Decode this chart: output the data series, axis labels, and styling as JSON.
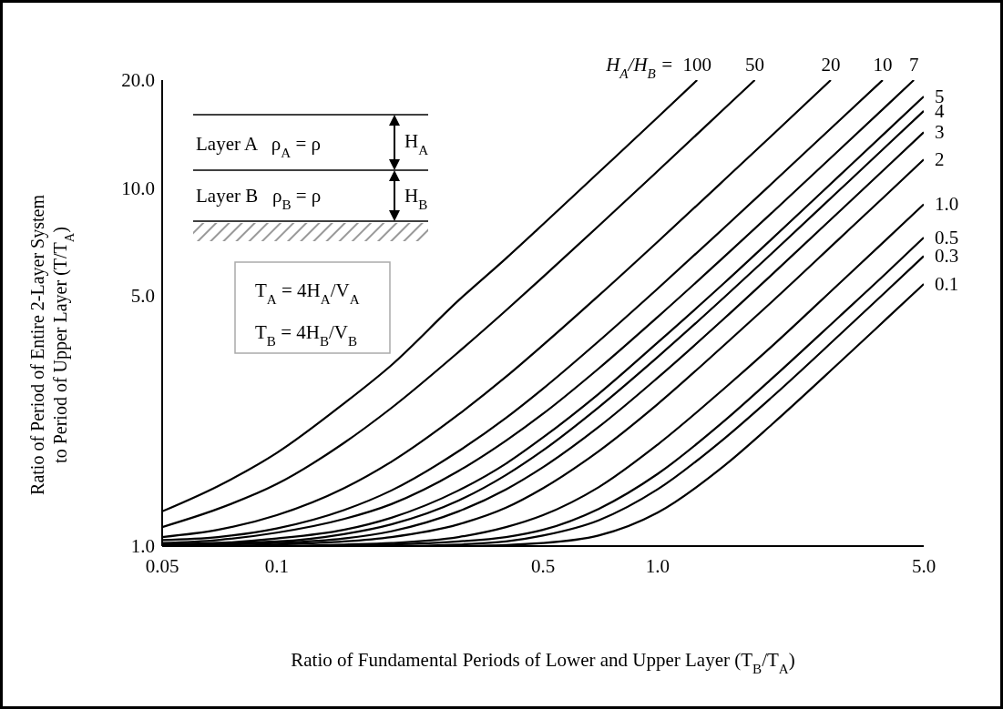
{
  "chart_data": {
    "type": "line",
    "xlabel": "Ratio of Fundamental Periods of Lower and Upper Layer (T$_{B}$/T$_{A}$)",
    "ylabel": "Ratio of Period of Entire 2-Layer System to Period of Upper Layer (T/T$_{A}$)",
    "legend_title": "H$_{A}$/H$_{B}$ =",
    "log": "xy",
    "marker": "none",
    "line_style": "solid",
    "xlim": [
      0.05,
      5
    ],
    "ylim": [
      1,
      20
    ],
    "xticks": [
      0.05,
      0.1,
      0.5,
      {
        "value": 1,
        "label": "1.0"
      },
      {
        "value": 5,
        "label": "5.0"
      }
    ],
    "yticks": [
      {
        "value": 1,
        "label": "1.0"
      },
      {
        "value": 5,
        "label": "5.0"
      },
      {
        "value": 10,
        "label": "10.0"
      },
      {
        "value": 20,
        "label": "20.0"
      }
    ],
    "annotations": [
      "Layer A   ρ$_{A}$ = ρ",
      "Layer B   ρ$_{B}$ = ρ",
      "H$_{A}$",
      "H$_{B}$",
      "T$_{A}$ = 4H$_{A}$/V$_{A}$",
      "T$_{B}$ = 4H$_{B}$/V$_{B}$"
    ],
    "series": [
      {
        "name": "100",
        "color": "#000000",
        "x": [
          0.05,
          0.07,
          0.1,
          0.15,
          0.2,
          0.3,
          0.4,
          0.5,
          0.7,
          1.0,
          1.27
        ],
        "values": [
          1.25,
          1.47,
          1.82,
          2.5,
          3.2,
          4.85,
          6.36,
          7.91,
          11.04,
          15.73,
          20
        ]
      },
      {
        "name": "50",
        "color": "#000000",
        "x": [
          0.05,
          0.07,
          0.1,
          0.15,
          0.2,
          0.3,
          0.4,
          0.5,
          0.7,
          1.0,
          1.5,
          1.8
        ],
        "values": [
          1.13,
          1.27,
          1.49,
          1.94,
          2.43,
          3.48,
          4.55,
          5.64,
          7.83,
          11.14,
          16.68,
          20
        ]
      },
      {
        "name": "20",
        "color": "#000000",
        "x": [
          0.05,
          0.07,
          0.1,
          0.15,
          0.2,
          0.3,
          0.4,
          0.5,
          0.7,
          1.0,
          1.5,
          2,
          2.85
        ],
        "values": [
          1.06,
          1.11,
          1.22,
          1.45,
          1.72,
          2.33,
          2.97,
          3.64,
          5.0,
          7.07,
          10.55,
          14.04,
          20
        ]
      },
      {
        "name": "10",
        "color": "#000000",
        "x": [
          0.05,
          0.07,
          0.1,
          0.15,
          0.2,
          0.3,
          0.4,
          0.5,
          0.7,
          1.0,
          1.5,
          2,
          3,
          3.9
        ],
        "values": [
          1.04,
          1.06,
          1.12,
          1.26,
          1.43,
          1.84,
          2.28,
          2.75,
          3.73,
          5.23,
          7.76,
          10.31,
          15.42,
          20
        ]
      },
      {
        "name": "7",
        "color": "#000000",
        "x": [
          0.05,
          0.07,
          0.1,
          0.15,
          0.2,
          0.3,
          0.4,
          0.5,
          0.7,
          1.0,
          1.5,
          2,
          3,
          4,
          4.71
        ],
        "values": [
          1.02,
          1.04,
          1.09,
          1.19,
          1.31,
          1.62,
          1.97,
          2.34,
          3.13,
          4.36,
          6.44,
          8.54,
          12.76,
          16.99,
          20
        ]
      },
      {
        "name": "5",
        "color": "#000000",
        "x": [
          0.05,
          0.07,
          0.1,
          0.15,
          0.2,
          0.3,
          0.4,
          0.5,
          0.7,
          1.0,
          1.5,
          2,
          3,
          4,
          5
        ],
        "values": [
          1.01,
          1.02,
          1.05,
          1.11,
          1.2,
          1.43,
          1.7,
          2.01,
          2.66,
          3.7,
          5.44,
          7.22,
          10.81,
          14.4,
          18.0
        ]
      },
      {
        "name": "4",
        "color": "#000000",
        "x": [
          0.05,
          0.07,
          0.1,
          0.15,
          0.2,
          0.3,
          0.4,
          0.5,
          0.7,
          1.0,
          1.5,
          2,
          3,
          4,
          5
        ],
        "values": [
          1.01,
          1.02,
          1.03,
          1.08,
          1.15,
          1.34,
          1.58,
          1.85,
          2.44,
          3.37,
          4.96,
          6.58,
          9.85,
          13.12,
          16.4
        ]
      },
      {
        "name": "3",
        "color": "#000000",
        "x": [
          0.05,
          0.07,
          0.1,
          0.15,
          0.2,
          0.3,
          0.4,
          0.5,
          0.7,
          1.0,
          1.5,
          2,
          3,
          4,
          5
        ],
        "values": [
          1.0,
          1.01,
          1.02,
          1.05,
          1.1,
          1.25,
          1.44,
          1.66,
          2.15,
          2.95,
          4.33,
          5.74,
          8.59,
          11.44,
          14.3
        ]
      },
      {
        "name": "2",
        "color": "#000000",
        "x": [
          0.05,
          0.07,
          0.1,
          0.15,
          0.2,
          0.3,
          0.4,
          0.5,
          0.7,
          1.0,
          1.5,
          2,
          3,
          4,
          5
        ],
        "values": [
          1.0,
          1.0,
          1.01,
          1.03,
          1.06,
          1.15,
          1.28,
          1.45,
          1.84,
          2.49,
          3.65,
          4.82,
          7.21,
          9.6,
          12.0
        ]
      },
      {
        "name": "1.0",
        "color": "#000000",
        "x": [
          0.05,
          0.1,
          0.15,
          0.2,
          0.3,
          0.4,
          0.5,
          0.7,
          1.0,
          1.5,
          2,
          3,
          4,
          5
        ],
        "values": [
          1.0,
          1.0,
          1.01,
          1.02,
          1.06,
          1.13,
          1.22,
          1.46,
          1.92,
          2.76,
          3.62,
          5.41,
          7.2,
          9.0
        ]
      },
      {
        "name": "0.5",
        "color": "#000000",
        "x": [
          0.05,
          0.1,
          0.2,
          0.3,
          0.4,
          0.5,
          0.7,
          1.0,
          1.5,
          2,
          3,
          4,
          5
        ],
        "values": [
          1.0,
          1.0,
          1.01,
          1.03,
          1.06,
          1.11,
          1.27,
          1.59,
          2.24,
          2.94,
          4.37,
          5.8,
          7.27
        ]
      },
      {
        "name": "0.3",
        "color": "#000000",
        "x": [
          0.05,
          0.1,
          0.2,
          0.3,
          0.4,
          0.5,
          0.7,
          1.0,
          1.5,
          2,
          3,
          4,
          5
        ],
        "values": [
          1.0,
          1.0,
          1.0,
          1.01,
          1.03,
          1.07,
          1.18,
          1.44,
          2.0,
          2.61,
          3.88,
          5.16,
          6.45
        ]
      },
      {
        "name": "0.1",
        "color": "#000000",
        "x": [
          0.05,
          0.1,
          0.2,
          0.3,
          0.5,
          0.7,
          1.0,
          1.5,
          2,
          3,
          4,
          5
        ],
        "values": [
          1.0,
          1.0,
          1.0,
          1.0,
          1.02,
          1.07,
          1.24,
          1.68,
          2.19,
          3.25,
          4.32,
          5.39
        ]
      }
    ]
  }
}
